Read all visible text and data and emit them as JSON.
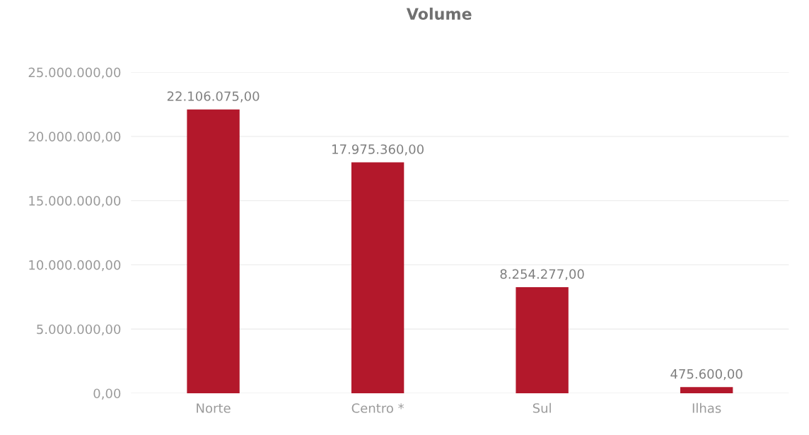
{
  "chart_data": {
    "type": "bar",
    "title": "Volume",
    "categories": [
      "Norte",
      "Centro *",
      "Sul",
      "Ilhas"
    ],
    "values": [
      22106075,
      17975360,
      8254277,
      475600
    ],
    "value_labels": [
      "22.106.075,00",
      "17.975.360,00",
      "8.254.277,00",
      "475.600,00"
    ],
    "color": "#b3182b",
    "ylim": [
      0,
      25000000
    ],
    "yticks": [
      {
        "value": 0,
        "label": "0,00"
      },
      {
        "value": 5000000,
        "label": "5.000.000,00"
      },
      {
        "value": 10000000,
        "label": "10.000.000,00"
      },
      {
        "value": 15000000,
        "label": "15.000.000,00"
      },
      {
        "value": 20000000,
        "label": "20.000.000,00"
      },
      {
        "value": 25000000,
        "label": "25.000.000,00"
      }
    ],
    "grid": "y",
    "legend": false
  }
}
